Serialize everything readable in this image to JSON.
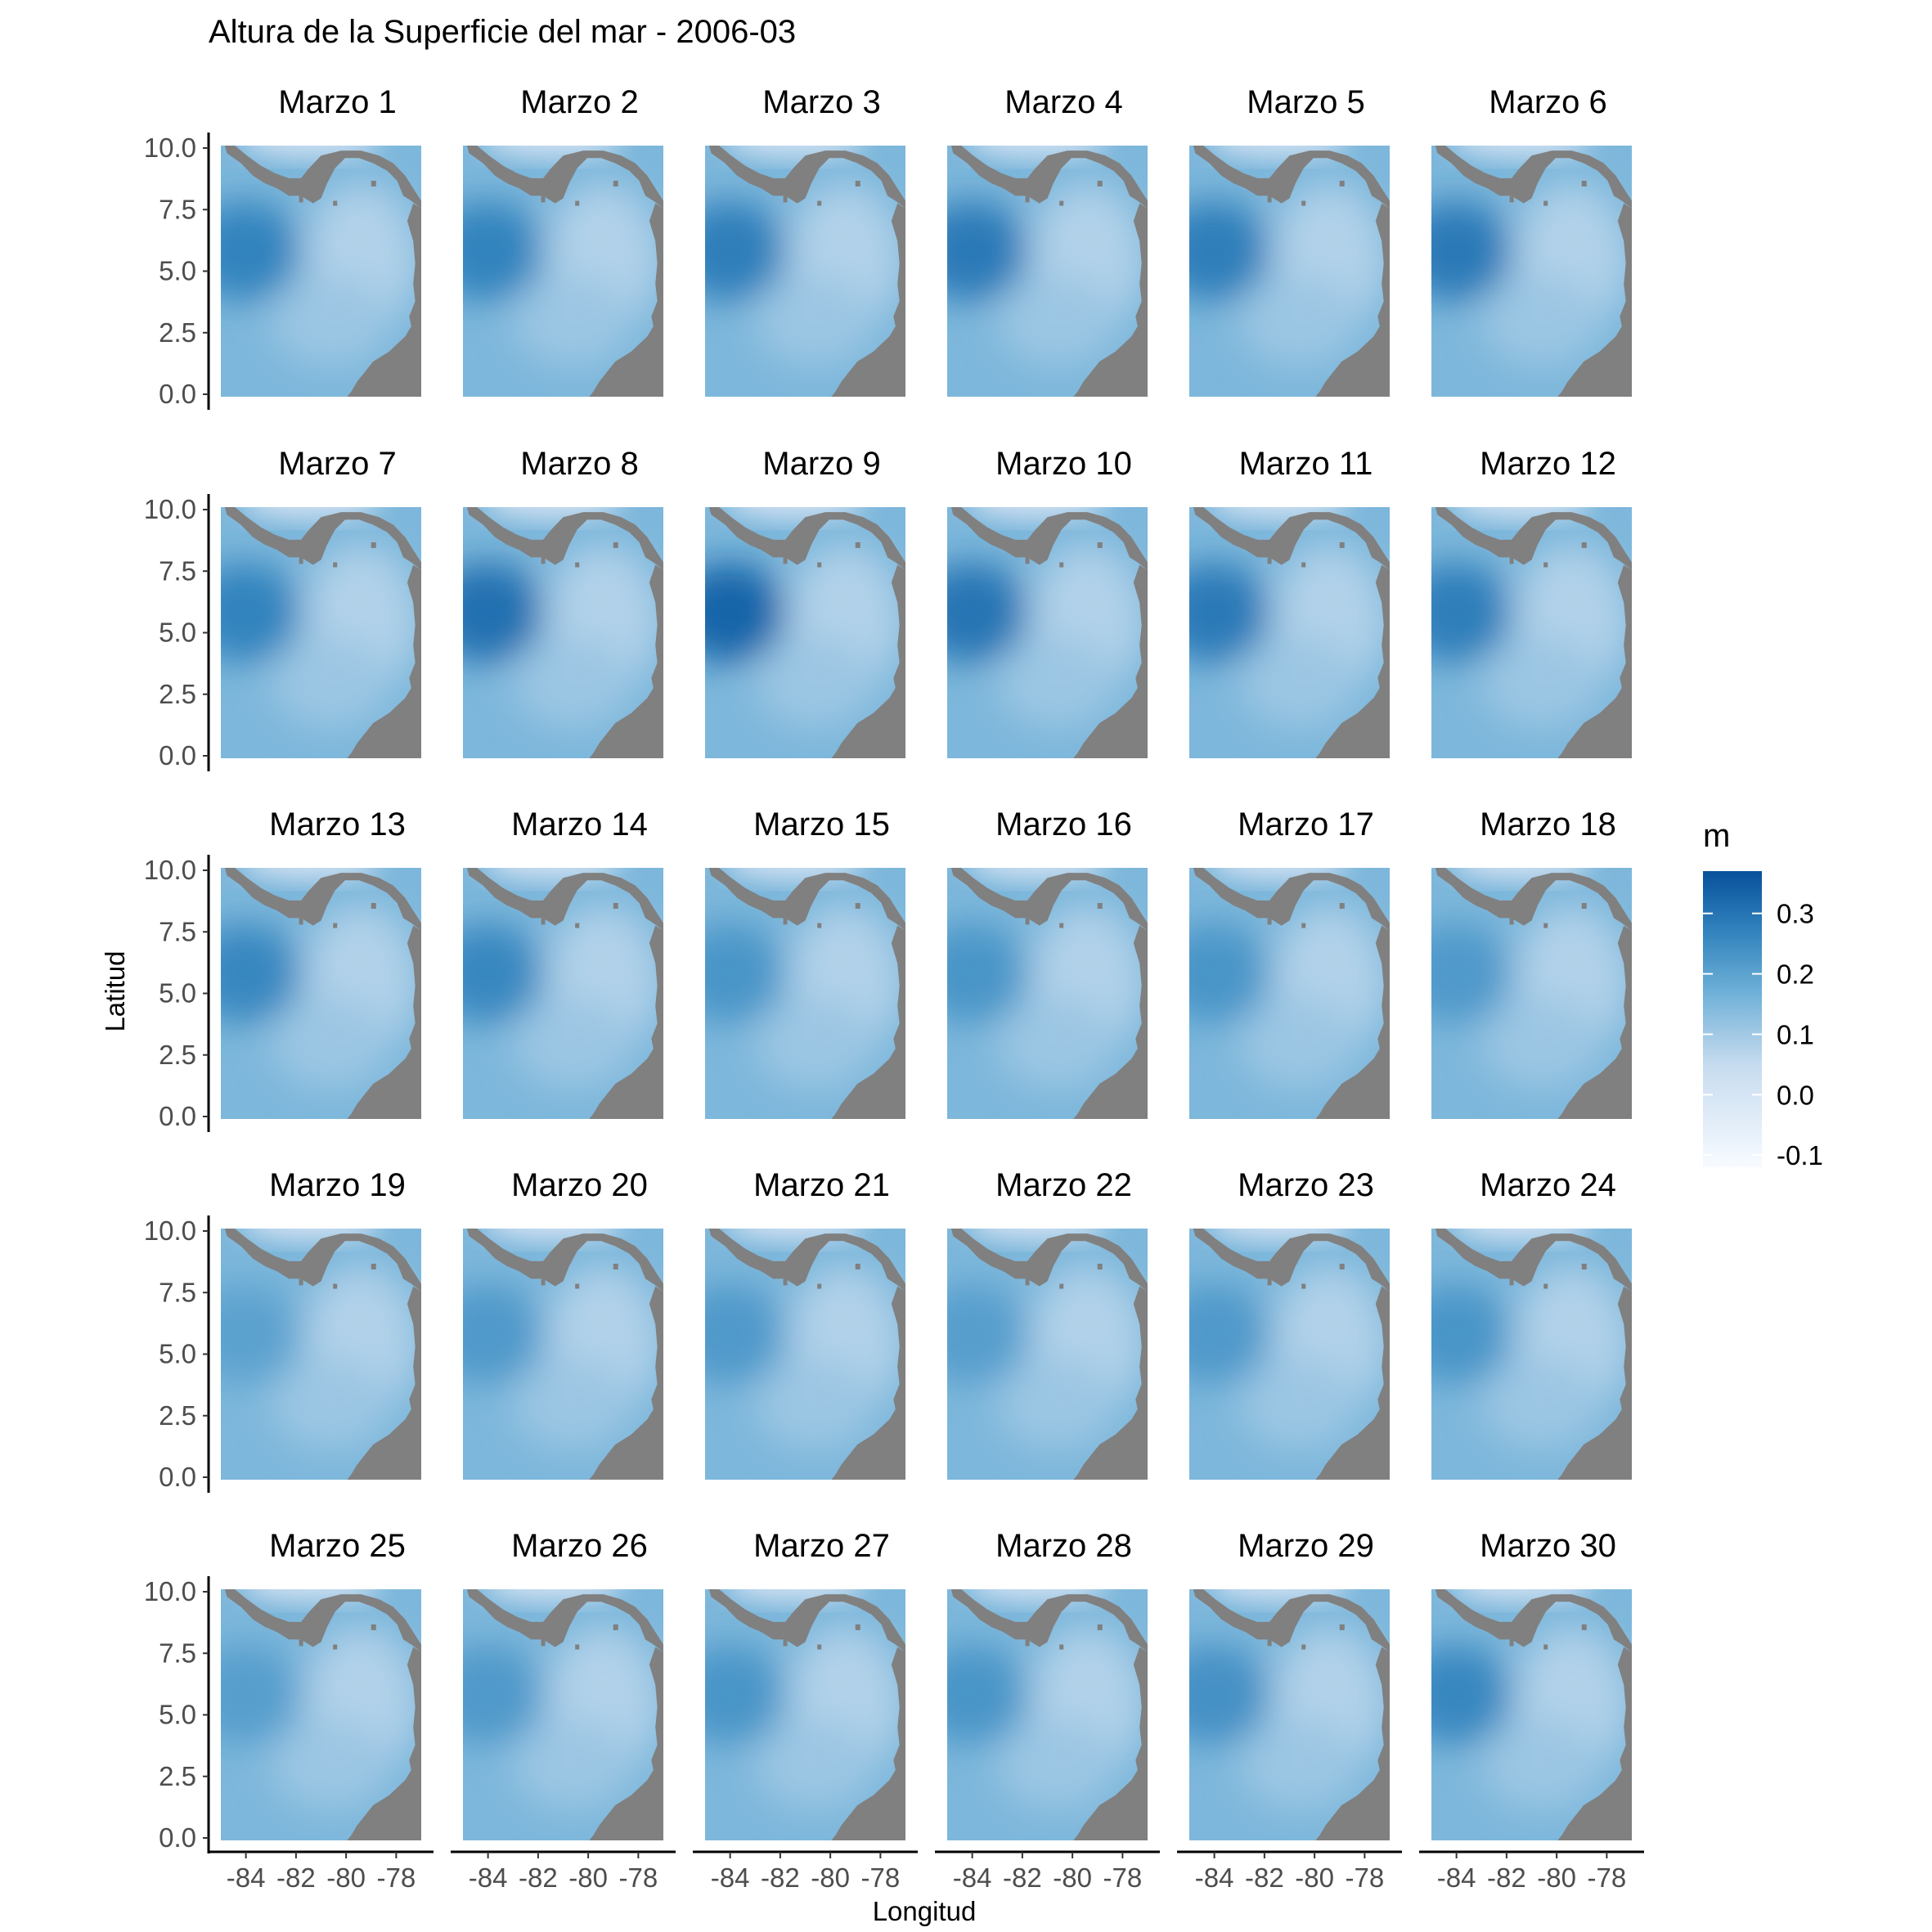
{
  "chart_data": {
    "type": "heatmap",
    "title": "Altura de la Superficie del mar - 2006-03",
    "xlabel": "Longitud",
    "ylabel": "Latitud",
    "x_ticks": [
      "-84",
      "-82",
      "-80",
      "-78"
    ],
    "x_tick_values": [
      -84,
      -82,
      -80,
      -78
    ],
    "y_ticks": [
      "0.0",
      "2.5",
      "5.0",
      "7.5",
      "10.0"
    ],
    "y_tick_values": [
      0,
      2.5,
      5,
      7.5,
      10
    ],
    "xlim": [
      -85,
      -77
    ],
    "ylim": [
      0,
      10
    ],
    "grid": false,
    "facet_layout": {
      "rows": 5,
      "cols": 6
    },
    "legend": {
      "title": "m",
      "position": "right",
      "ticks": [
        "0.3",
        "0.2",
        "0.1",
        "0.0",
        "-0.1"
      ],
      "tick_values": [
        0.3,
        0.2,
        0.1,
        0.0,
        -0.1
      ],
      "range": [
        -0.12,
        0.37
      ],
      "low_color": "#F7FBFF",
      "high_color": "#08519C"
    },
    "land_color": "#808080",
    "panels": [
      {
        "label": "Marzo 1",
        "eddy_strength": 0.27
      },
      {
        "label": "Marzo 2",
        "eddy_strength": 0.27
      },
      {
        "label": "Marzo 3",
        "eddy_strength": 0.28
      },
      {
        "label": "Marzo 4",
        "eddy_strength": 0.29
      },
      {
        "label": "Marzo 5",
        "eddy_strength": 0.28
      },
      {
        "label": "Marzo 6",
        "eddy_strength": 0.29
      },
      {
        "label": "Marzo 7",
        "eddy_strength": 0.27
      },
      {
        "label": "Marzo 8",
        "eddy_strength": 0.31
      },
      {
        "label": "Marzo 9",
        "eddy_strength": 0.33
      },
      {
        "label": "Marzo 10",
        "eddy_strength": 0.3
      },
      {
        "label": "Marzo 11",
        "eddy_strength": 0.29
      },
      {
        "label": "Marzo 12",
        "eddy_strength": 0.28
      },
      {
        "label": "Marzo 13",
        "eddy_strength": 0.26
      },
      {
        "label": "Marzo 14",
        "eddy_strength": 0.26
      },
      {
        "label": "Marzo 15",
        "eddy_strength": 0.23
      },
      {
        "label": "Marzo 16",
        "eddy_strength": 0.23
      },
      {
        "label": "Marzo 17",
        "eddy_strength": 0.23
      },
      {
        "label": "Marzo 18",
        "eddy_strength": 0.22
      },
      {
        "label": "Marzo 19",
        "eddy_strength": 0.2
      },
      {
        "label": "Marzo 20",
        "eddy_strength": 0.22
      },
      {
        "label": "Marzo 21",
        "eddy_strength": 0.22
      },
      {
        "label": "Marzo 22",
        "eddy_strength": 0.21
      },
      {
        "label": "Marzo 23",
        "eddy_strength": 0.22
      },
      {
        "label": "Marzo 24",
        "eddy_strength": 0.23
      },
      {
        "label": "Marzo 25",
        "eddy_strength": 0.21
      },
      {
        "label": "Marzo 26",
        "eddy_strength": 0.22
      },
      {
        "label": "Marzo 27",
        "eddy_strength": 0.23
      },
      {
        "label": "Marzo 28",
        "eddy_strength": 0.23
      },
      {
        "label": "Marzo 29",
        "eddy_strength": 0.24
      },
      {
        "label": "Marzo 30",
        "eddy_strength": 0.26
      }
    ]
  }
}
